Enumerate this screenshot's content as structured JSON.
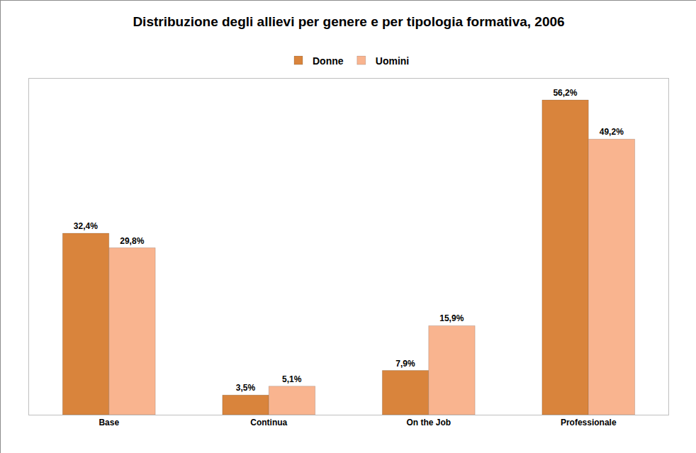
{
  "chart_data": {
    "type": "bar",
    "title": "Distribuzione degli allievi per genere e per tipologia formativa, 2006",
    "categories": [
      "Base",
      "Continua",
      "On the Job",
      "Professionale"
    ],
    "series": [
      {
        "name": "Donne",
        "color": "#D9843C",
        "values": [
          32.4,
          3.5,
          7.9,
          56.2
        ],
        "value_labels": [
          "32,4%",
          "3,5%",
          "7,9%",
          "56,2%"
        ]
      },
      {
        "name": "Uomini",
        "color": "#F9B48F",
        "values": [
          29.8,
          5.1,
          15.9,
          49.2
        ],
        "value_labels": [
          "29,8%",
          "5,1%",
          "15,9%",
          "49,2%"
        ]
      }
    ],
    "ylim": [
      0,
      60
    ],
    "grid": false,
    "legend": "top",
    "data_labels": true,
    "tick_labels": "x"
  }
}
